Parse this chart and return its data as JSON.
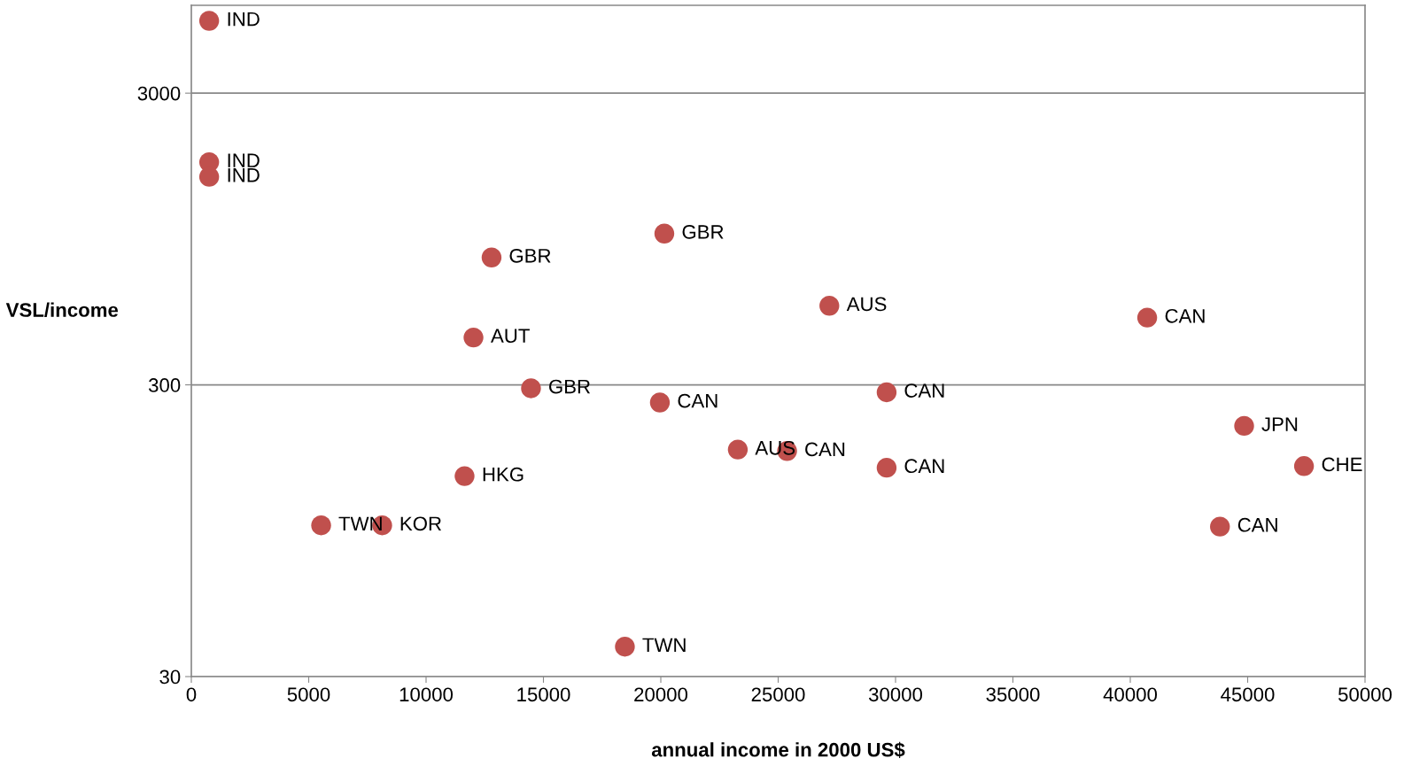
{
  "chart_data": {
    "type": "scatter",
    "xlabel": "annual income in 2000 US$",
    "ylabel": "VSL/income",
    "x": [
      760,
      760,
      760,
      20150,
      12790,
      27180,
      40720,
      12020,
      14470,
      19960,
      29620,
      44850,
      23280,
      25380,
      29620,
      47400,
      11640,
      5530,
      8130,
      43820,
      18470
    ],
    "values": [
      5310,
      1740,
      1550,
      990,
      820,
      560,
      510,
      436,
      292,
      261,
      283,
      217,
      180,
      178,
      156,
      158,
      146,
      99,
      99,
      98,
      38
    ],
    "color": "#c0504d",
    "marker": "circle",
    "log": "y",
    "grid": "y",
    "legend": false,
    "xlim": [
      0,
      50000
    ],
    "xticks": [
      0,
      5000,
      10000,
      15000,
      20000,
      25000,
      30000,
      35000,
      40000,
      45000,
      50000
    ],
    "ylim": [
      30,
      6000
    ],
    "yticks": [
      30,
      300,
      3000
    ],
    "annotations": [
      {
        "text": "IND",
        "x": 760,
        "y": 5310
      },
      {
        "text": "IND",
        "x": 760,
        "y": 1740
      },
      {
        "text": "IND",
        "x": 760,
        "y": 1550
      },
      {
        "text": "GBR",
        "x": 20150,
        "y": 990
      },
      {
        "text": "GBR",
        "x": 12790,
        "y": 820
      },
      {
        "text": "AUS",
        "x": 27180,
        "y": 560
      },
      {
        "text": "CAN",
        "x": 40720,
        "y": 510
      },
      {
        "text": "AUT",
        "x": 12020,
        "y": 436
      },
      {
        "text": "GBR",
        "x": 14470,
        "y": 292
      },
      {
        "text": "CAN",
        "x": 19960,
        "y": 261
      },
      {
        "text": "CAN",
        "x": 29620,
        "y": 283
      },
      {
        "text": "JPN",
        "x": 44850,
        "y": 217
      },
      {
        "text": "AUS",
        "x": 23280,
        "y": 180
      },
      {
        "text": "CAN",
        "x": 25380,
        "y": 178
      },
      {
        "text": "CAN",
        "x": 29620,
        "y": 156
      },
      {
        "text": "CHE",
        "x": 47400,
        "y": 158
      },
      {
        "text": "HKG",
        "x": 11640,
        "y": 146
      },
      {
        "text": "TWN",
        "x": 5530,
        "y": 99
      },
      {
        "text": "KOR",
        "x": 8130,
        "y": 99
      },
      {
        "text": "CAN",
        "x": 43820,
        "y": 98
      },
      {
        "text": "TWN",
        "x": 18470,
        "y": 38
      }
    ]
  }
}
